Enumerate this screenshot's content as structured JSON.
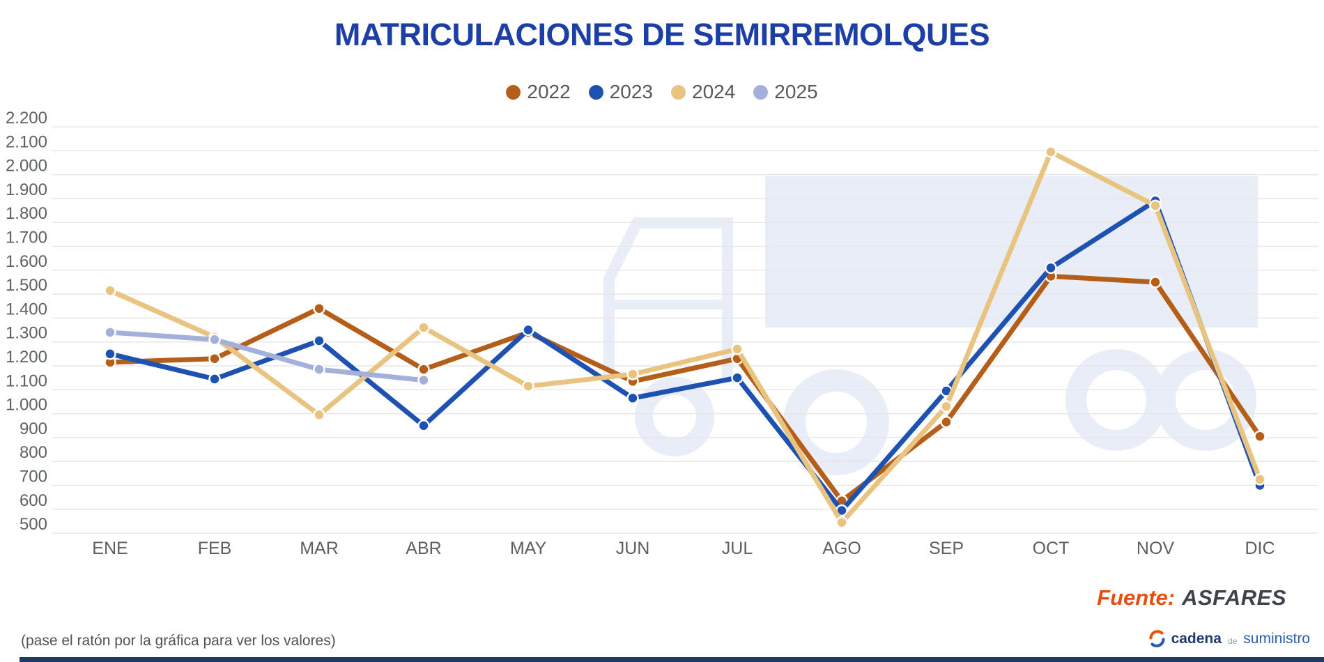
{
  "header": {
    "title": "MATRICULACIONES DE SEMIRREMOLQUES"
  },
  "chart_data": {
    "type": "line",
    "title": "MATRICULACIONES DE SEMIRREMOLQUES",
    "categories": [
      "ENE",
      "FEB",
      "MAR",
      "ABR",
      "MAY",
      "JUN",
      "JUL",
      "AGO",
      "SEP",
      "OCT",
      "NOV",
      "DIC"
    ],
    "series": [
      {
        "name": "2022",
        "color": "#b45e19",
        "values": [
          1215,
          1230,
          1440,
          1185,
          1340,
          1135,
          1230,
          635,
          965,
          1575,
          1550,
          905
        ]
      },
      {
        "name": "2023",
        "color": "#1d52b3",
        "values": [
          1250,
          1145,
          1305,
          950,
          1350,
          1065,
          1150,
          595,
          1095,
          1610,
          1890,
          700
        ]
      },
      {
        "name": "2024",
        "color": "#e9c480",
        "values": [
          1515,
          1320,
          995,
          1360,
          1115,
          1165,
          1270,
          545,
          1030,
          2095,
          1870,
          725
        ]
      },
      {
        "name": "2025",
        "color": "#a3b1da",
        "values": [
          1340,
          1310,
          1185,
          1140,
          null,
          null,
          null,
          null,
          null,
          null,
          null,
          null
        ]
      }
    ],
    "xlabel": "",
    "ylabel": "",
    "y_axis": {
      "min": 500,
      "max": 2200,
      "step": 100,
      "tick_format": "es-thousands"
    },
    "grid": true,
    "legend_position": "top"
  },
  "footer": {
    "note": "(pase el ratón por la gráfica para ver los valores)",
    "source_label": "Fuente:",
    "source_name": "ASFARES",
    "logo": {
      "part1": "cadena",
      "part2": "de",
      "part3": "suministro"
    }
  },
  "colors": {
    "title": "#1c3fa6",
    "source_label": "#e84f0f",
    "source_name": "#3e434a",
    "watermark": "#e9edf8",
    "bottom_bar": "#203a66",
    "gridline": "#e7e7e7",
    "axis_text": "#5d6063"
  }
}
